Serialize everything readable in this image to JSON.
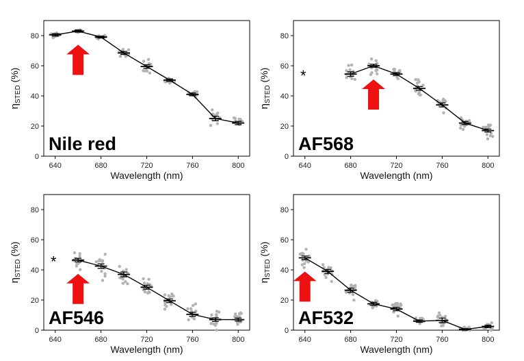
{
  "chart_data": [
    {
      "type": "scatter",
      "panel_label": "Nile red",
      "xlabel": "Wavelength (nm)",
      "ylabel_symbol": "η",
      "ylabel_subscript": "STED",
      "ylabel_unit": " (%)",
      "xlim": [
        630,
        810
      ],
      "ylim": [
        0,
        90
      ],
      "xticks": [
        640,
        680,
        720,
        760,
        800
      ],
      "yticks": [
        0,
        20,
        40,
        60,
        80
      ],
      "x": [
        640,
        660,
        680,
        700,
        720,
        740,
        760,
        780,
        800
      ],
      "mean": [
        80.5,
        83,
        79,
        68.5,
        59.5,
        50.5,
        41,
        25,
        22
      ],
      "sem": [
        0.8,
        0.7,
        0.6,
        1.0,
        1.2,
        0.8,
        0.9,
        1.5,
        1.1
      ],
      "spread": [
        2,
        1.5,
        1.5,
        3,
        6,
        3,
        2.5,
        8,
        4
      ],
      "arrow_at": 660,
      "asterisk": false
    },
    {
      "type": "scatter",
      "panel_label": "AF568",
      "xlabel": "Wavelength (nm)",
      "ylabel_symbol": "η",
      "ylabel_subscript": "STED",
      "ylabel_unit": " (%)",
      "xlim": [
        630,
        810
      ],
      "ylim": [
        0,
        90
      ],
      "xticks": [
        640,
        680,
        720,
        760,
        800
      ],
      "yticks": [
        0,
        20,
        40,
        60,
        80
      ],
      "x": [
        680,
        700,
        720,
        740,
        760,
        780,
        800
      ],
      "mean": [
        54.5,
        60,
        54.5,
        45,
        34,
        22,
        17
      ],
      "sem": [
        1.5,
        1.0,
        0.9,
        1.2,
        1.3,
        1.0,
        1.0
      ],
      "spread": [
        8,
        6,
        5,
        10,
        6,
        7,
        6
      ],
      "arrow_at": 700,
      "asterisk": true,
      "asterisk_text": "*"
    },
    {
      "type": "scatter",
      "panel_label": "AF546",
      "xlabel": "Wavelength (nm)",
      "ylabel_symbol": "η",
      "ylabel_subscript": "STED",
      "ylabel_unit": " (%)",
      "xlim": [
        630,
        810
      ],
      "ylim": [
        0,
        90
      ],
      "xticks": [
        640,
        680,
        720,
        760,
        800
      ],
      "yticks": [
        0,
        20,
        40,
        60,
        80
      ],
      "x": [
        660,
        680,
        700,
        720,
        740,
        760,
        780,
        800
      ],
      "mean": [
        46.5,
        42.5,
        37,
        28.5,
        19.5,
        10.5,
        7,
        7
      ],
      "sem": [
        1.2,
        1.5,
        1.6,
        1.3,
        1.2,
        1.3,
        1.2,
        1.0
      ],
      "spread": [
        7,
        10,
        10,
        8,
        8,
        8,
        8,
        6
      ],
      "arrow_at": 660,
      "asterisk": true,
      "asterisk_text": "*"
    },
    {
      "type": "scatter",
      "panel_label": "AF532",
      "xlabel": "Wavelength (nm)",
      "ylabel_symbol": "η",
      "ylabel_subscript": "STED",
      "ylabel_unit": " (%)",
      "xlim": [
        630,
        810
      ],
      "ylim": [
        0,
        90
      ],
      "xticks": [
        640,
        680,
        720,
        760,
        800
      ],
      "yticks": [
        0,
        20,
        40,
        60,
        80
      ],
      "x": [
        640,
        660,
        680,
        700,
        720,
        740,
        760,
        780,
        800
      ],
      "mean": [
        48,
        39,
        26.5,
        17.5,
        14,
        6,
        6.5,
        0.5,
        2.5
      ],
      "sem": [
        1.2,
        1.3,
        1.4,
        1.0,
        1.1,
        0.8,
        1.5,
        0.5,
        0.8
      ],
      "spread": [
        8,
        7,
        8,
        4,
        6,
        4,
        6,
        3,
        3
      ],
      "arrow_at": 640,
      "asterisk": false
    }
  ],
  "colors": {
    "points": "#b3b3b3",
    "line": "#000000",
    "arrow": "#ee1111",
    "frame": "#000000"
  }
}
